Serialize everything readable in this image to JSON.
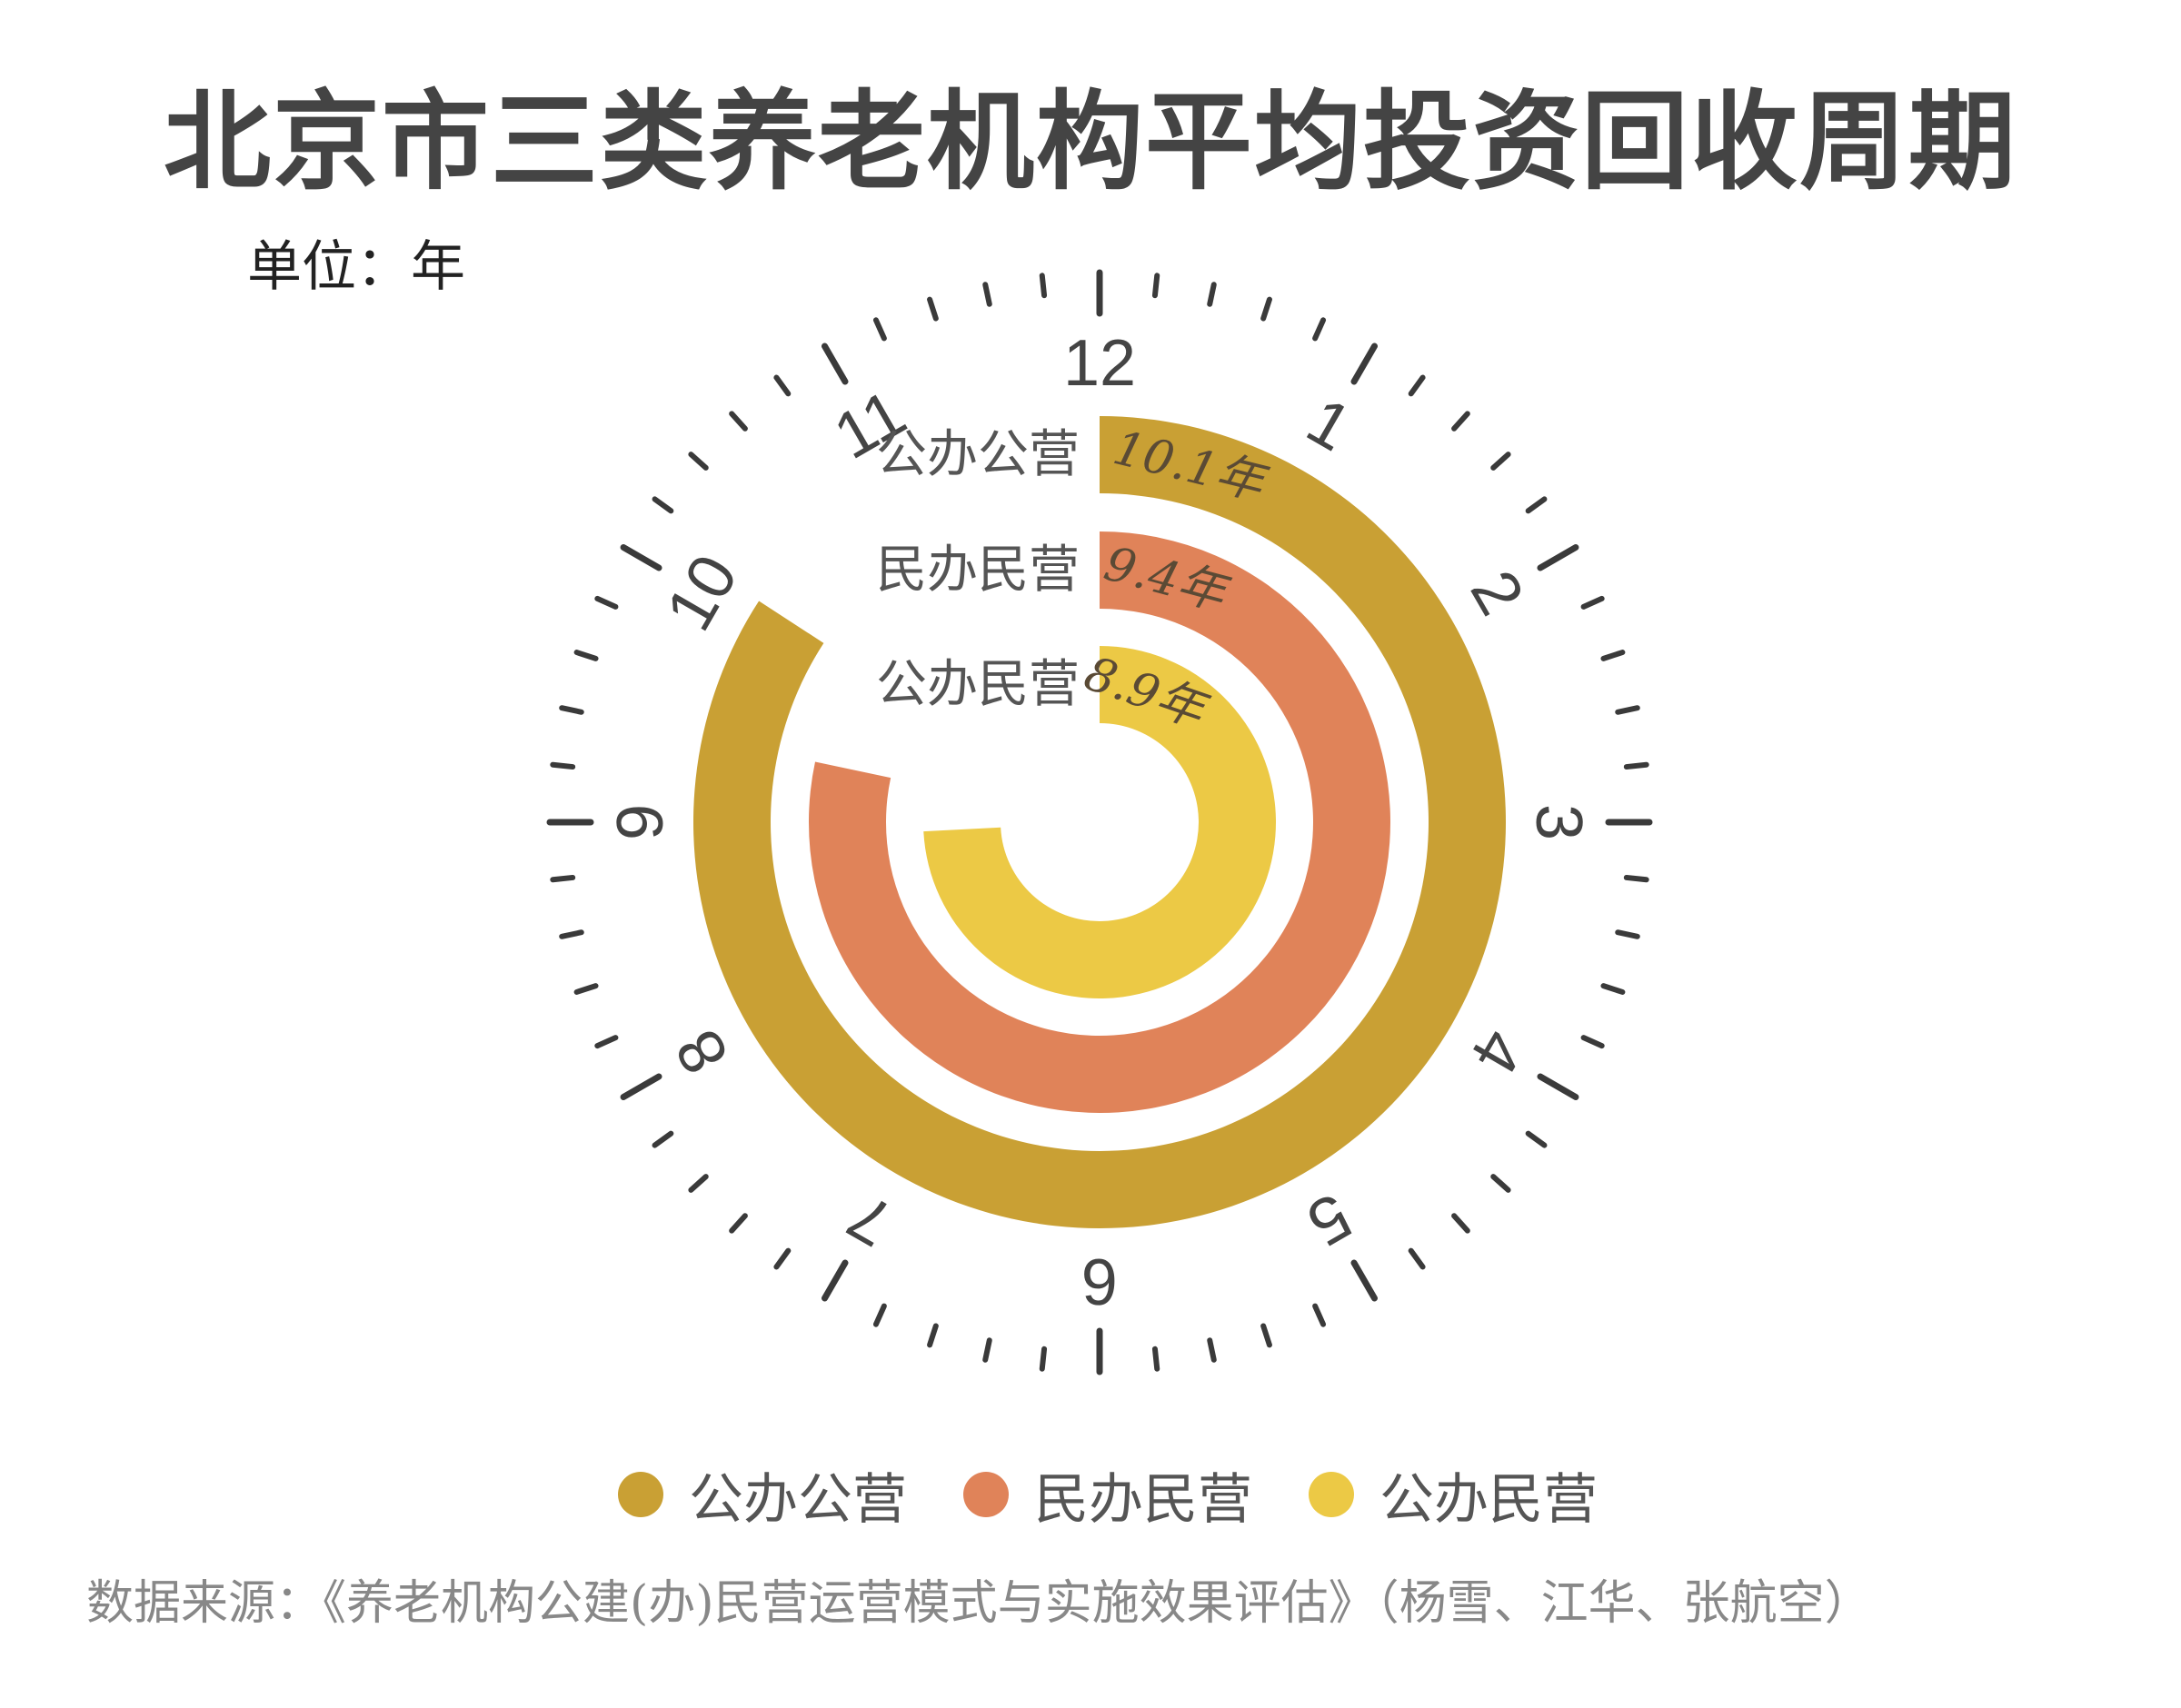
{
  "title": "北京市三类养老机构平均投资回收周期",
  "unit_label": "单位：年",
  "source": "数据来源：《养老机构公建(办)民营运营模式与实施效果评估》（杨雪、江华、张航空）",
  "clock_numbers": [
    "12",
    "1",
    "2",
    "3",
    "4",
    "5",
    "6",
    "7",
    "8",
    "9",
    "10",
    "11"
  ],
  "chart_data": {
    "type": "radial-bar",
    "title": "北京市三类养老机构平均投资回收周期",
    "unit": "年",
    "max": 12,
    "series": [
      {
        "name": "公办公营",
        "value": 10.1,
        "label": "10.1年",
        "color": "#C9A034"
      },
      {
        "name": "民办民营",
        "value": 9.4,
        "label": "9.4年",
        "color": "#E08359"
      },
      {
        "name": "公办民营",
        "value": 8.9,
        "label": "8.9年",
        "color": "#ECC945"
      }
    ],
    "legend_position": "bottom"
  }
}
